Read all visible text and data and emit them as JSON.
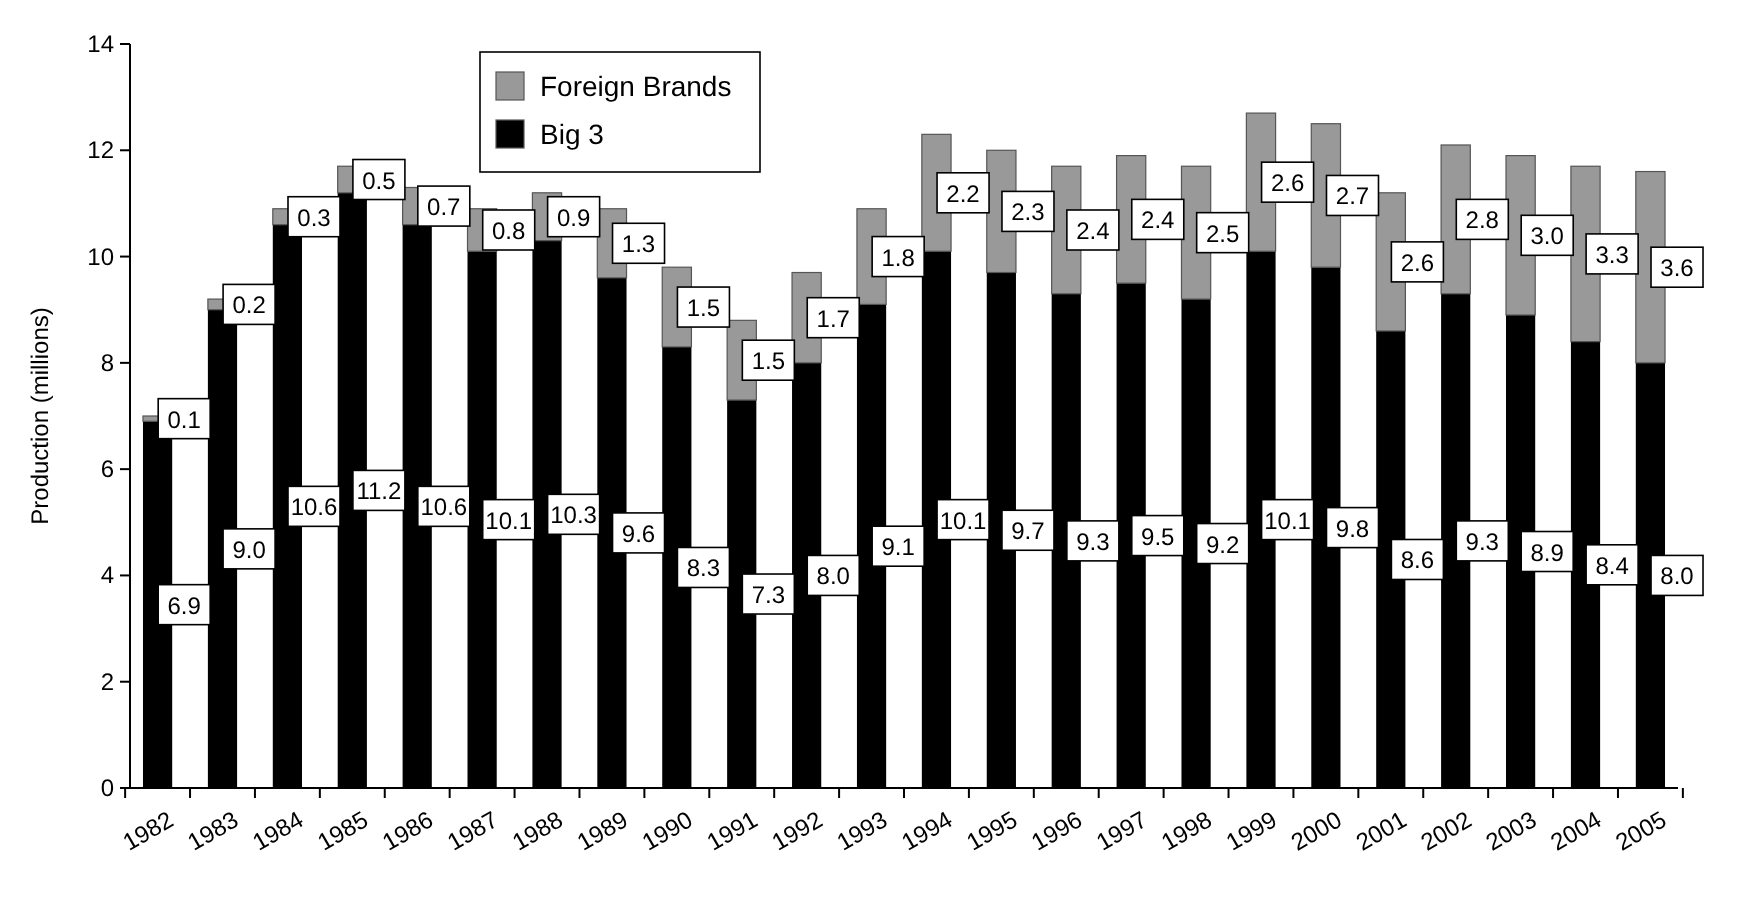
{
  "chart_data": {
    "type": "bar",
    "stacked": true,
    "ylabel": "Production (millions)",
    "categories": [
      "1982",
      "1983",
      "1984",
      "1985",
      "1986",
      "1987",
      "1988",
      "1989",
      "1990",
      "1991",
      "1992",
      "1993",
      "1994",
      "1995",
      "1996",
      "1997",
      "1998",
      "1999",
      "2000",
      "2001",
      "2002",
      "2003",
      "2004",
      "2005"
    ],
    "series": [
      {
        "name": "Big 3",
        "color": "#000000",
        "values": [
          6.9,
          9.0,
          10.6,
          11.2,
          10.6,
          10.1,
          10.3,
          9.6,
          8.3,
          7.3,
          8.0,
          9.1,
          10.1,
          9.7,
          9.3,
          9.5,
          9.2,
          10.1,
          9.8,
          8.6,
          9.3,
          8.9,
          8.4,
          8.0
        ],
        "value_labels": [
          "6.9",
          "9.0",
          "10.6",
          "11.2",
          "10.6",
          "10.1",
          "10.3",
          "9.6",
          "8.3",
          "7.3",
          "8.0",
          "9.1",
          "10.1",
          "9.7",
          "9.3",
          "9.5",
          "9.2",
          "10.1",
          "9.8",
          "8.6",
          "9.3",
          "8.9",
          "8.4",
          "8.0"
        ]
      },
      {
        "name": "Foreign Brands",
        "color": "#999999",
        "values": [
          0.1,
          0.2,
          0.3,
          0.5,
          0.7,
          0.8,
          0.9,
          1.3,
          1.5,
          1.5,
          1.7,
          1.8,
          2.2,
          2.3,
          2.4,
          2.4,
          2.5,
          2.6,
          2.7,
          2.6,
          2.8,
          3.0,
          3.3,
          3.6
        ],
        "value_labels": [
          "0.1",
          "0.2",
          "0.3",
          "0.5",
          "0.7",
          "0.8",
          "0.9",
          "1.3",
          "1.5",
          "1.5",
          "1.7",
          "1.8",
          "2.2",
          "2.3",
          "2.4",
          "2.4",
          "2.5",
          "2.6",
          "2.7",
          "2.6",
          "2.8",
          "3.0",
          "3.3",
          "3.6"
        ]
      }
    ],
    "ylim": [
      0,
      14
    ],
    "yticks": [
      0,
      2,
      4,
      6,
      8,
      10,
      12,
      14
    ],
    "legend": "top left",
    "grid": false
  }
}
